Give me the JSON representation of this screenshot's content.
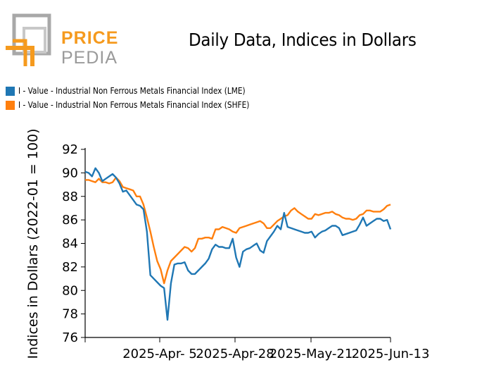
{
  "logo": {
    "line1": "PRICE",
    "line2": "PEDIA",
    "color_primary": "#F59A1E",
    "color_secondary": "#9A9A9A"
  },
  "chart_data": {
    "type": "line",
    "title": "Daily Data, Indices in Dollars",
    "xlabel": "",
    "ylabel": "Indices in Dollars (2022-01 = 100)",
    "ylim": [
      76,
      92
    ],
    "yticks": [
      76,
      78,
      80,
      82,
      84,
      86,
      88,
      90,
      92
    ],
    "xticks": [
      "2025-Apr- 5",
      "2025-Apr-28",
      "2025-May-21",
      "2025-Jun-13"
    ],
    "legend_position": "top-left",
    "grid": false,
    "series": [
      {
        "name": "I - Value - Industrial Non Ferrous Metals Financial Index (LME)",
        "color": "#1F77B4",
        "values": [
          90.1,
          90.0,
          89.7,
          90.4,
          90.0,
          89.3,
          89.5,
          89.7,
          89.9,
          89.6,
          89.1,
          88.4,
          88.5,
          88.1,
          87.7,
          87.3,
          87.2,
          86.9,
          85.0,
          81.3,
          81.0,
          80.7,
          80.4,
          80.2,
          77.5,
          80.6,
          82.2,
          82.3,
          82.3,
          82.4,
          81.7,
          81.4,
          81.4,
          81.7,
          82.0,
          82.3,
          82.7,
          83.5,
          83.9,
          83.7,
          83.7,
          83.6,
          83.6,
          84.4,
          82.8,
          82.0,
          83.3,
          83.5,
          83.6,
          83.8,
          84.0,
          83.4,
          83.2,
          84.2,
          84.6,
          85.0,
          85.5,
          85.2,
          86.6,
          85.4,
          85.3,
          85.2,
          85.1,
          85.0,
          84.9,
          84.9,
          85.0,
          84.5,
          84.8,
          85.0,
          85.1,
          85.3,
          85.5,
          85.5,
          85.3,
          84.7,
          84.8,
          84.9,
          85.0,
          85.1,
          85.6,
          86.2,
          85.5,
          85.7,
          85.9,
          86.1,
          86.1,
          85.9,
          86.0,
          85.2
        ]
      },
      {
        "name": "I - Value - Industrial Non Ferrous Metals Financial Index (SHFE)",
        "color": "#FF7F0E",
        "values": [
          89.4,
          89.4,
          89.3,
          89.2,
          89.5,
          89.2,
          89.2,
          89.1,
          89.2,
          89.6,
          89.3,
          88.8,
          88.7,
          88.6,
          88.5,
          88.0,
          88.0,
          87.3,
          86.2,
          85.0,
          83.7,
          82.5,
          81.8,
          80.6,
          81.7,
          82.5,
          82.8,
          83.1,
          83.4,
          83.7,
          83.6,
          83.3,
          83.6,
          84.4,
          84.4,
          84.5,
          84.5,
          84.4,
          85.2,
          85.2,
          85.4,
          85.3,
          85.2,
          85.0,
          84.9,
          85.3,
          85.4,
          85.5,
          85.6,
          85.7,
          85.8,
          85.9,
          85.7,
          85.3,
          85.3,
          85.6,
          85.9,
          86.1,
          86.3,
          86.4,
          86.8,
          87.0,
          86.7,
          86.5,
          86.3,
          86.1,
          86.1,
          86.5,
          86.4,
          86.5,
          86.6,
          86.6,
          86.7,
          86.5,
          86.4,
          86.2,
          86.1,
          86.1,
          86.0,
          86.1,
          86.4,
          86.5,
          86.8,
          86.8,
          86.7,
          86.7,
          86.7,
          86.9,
          87.2,
          87.3
        ]
      }
    ]
  }
}
